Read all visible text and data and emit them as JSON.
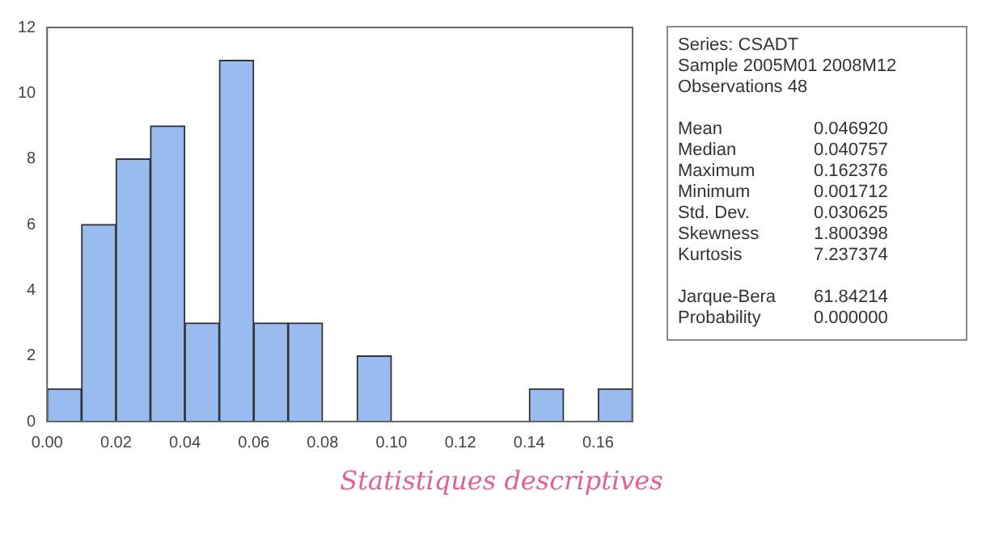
{
  "chart_data": {
    "type": "histogram",
    "bins": [
      0,
      0.01,
      0.02,
      0.03,
      0.04,
      0.05,
      0.06,
      0.07,
      0.08,
      0.09,
      0.1,
      0.11,
      0.12,
      0.13,
      0.14,
      0.15,
      0.16,
      0.17
    ],
    "values": [
      1,
      6,
      8,
      9,
      3,
      11,
      3,
      3,
      0,
      2,
      0,
      0,
      0,
      0,
      1,
      0,
      1
    ],
    "color": "#99bbf0",
    "xlim": [
      0,
      0.17
    ],
    "xticks": [
      {
        "value": 0,
        "label": "0.00"
      },
      {
        "value": 0.02,
        "label": "0.02"
      },
      {
        "value": 0.04,
        "label": "0.04"
      },
      {
        "value": 0.06,
        "label": "0.06"
      },
      {
        "value": 0.08,
        "label": "0.08"
      },
      {
        "value": 0.1,
        "label": "0.10"
      },
      {
        "value": 0.12,
        "label": "0.12"
      },
      {
        "value": 0.14,
        "label": "0.14"
      },
      {
        "value": 0.16,
        "label": "0.16"
      }
    ],
    "ylim": [
      0,
      12
    ],
    "yticks": [
      0,
      2,
      4,
      6,
      8,
      10,
      12
    ],
    "grid": false,
    "annotations": [
      "Series: CSADT",
      "Sample 2005M01 2008M12",
      "Observations 48",
      "Mean",
      "0.046920",
      "Median",
      "0.040757",
      "Maximum",
      "0.162376",
      "Minimum",
      "0.001712",
      "Std. Dev.",
      "0.030625",
      "Skewness",
      "1.800398",
      "Kurtosis",
      "7.237374",
      "Jarque-Bera",
      "61.84214",
      "Probability",
      "0.000000",
      "Statistiques descriptives"
    ]
  }
}
